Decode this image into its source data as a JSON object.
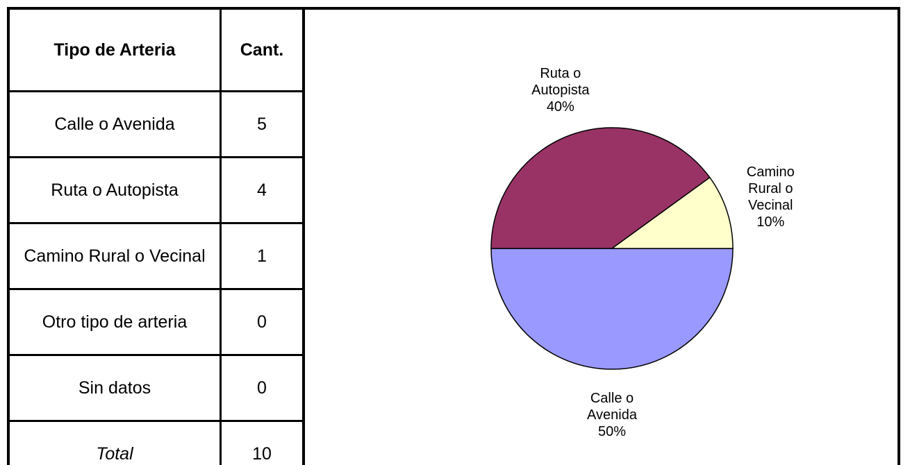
{
  "table": {
    "header": [
      "Tipo de Arteria",
      "Cant."
    ],
    "rows": [
      [
        "Calle o Avenida",
        5
      ],
      [
        "Ruta o Autopista",
        4
      ],
      [
        "Camino Rural o Vecinal",
        1
      ],
      [
        "Otro tipo de arteria",
        0
      ],
      [
        "Sin datos",
        0
      ],
      [
        "Total",
        10
      ]
    ]
  },
  "chart_data": {
    "type": "pie",
    "categories": [
      "Calle o Avenida",
      "Ruta o Autopista",
      "Camino Rural o Vecinal"
    ],
    "values": [
      50,
      40,
      10
    ],
    "value_labels": [
      "50%",
      "40%",
      "10%"
    ],
    "colors": [
      "#9999ff",
      "#993366",
      "#ffffcc"
    ]
  }
}
